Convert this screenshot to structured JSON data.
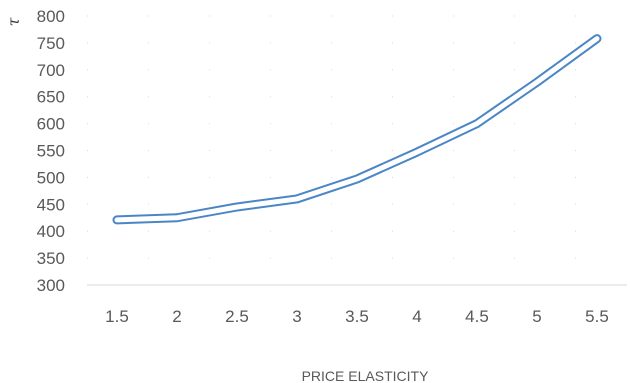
{
  "chart_data": {
    "type": "line",
    "title": "",
    "xlabel": "PRICE ELASTICITY",
    "ylabel": "τ",
    "x": [
      1.5,
      2,
      2.5,
      3,
      3.5,
      4,
      4.5,
      5,
      5.5
    ],
    "x_tick_labels": [
      "1.5",
      "2",
      "2.5",
      "3",
      "3.5",
      "4",
      "4.5",
      "5",
      "5.5"
    ],
    "y_ticks": [
      300,
      350,
      400,
      450,
      500,
      550,
      600,
      650,
      700,
      750,
      800
    ],
    "ylim": [
      300,
      800
    ],
    "grid": "dotted",
    "legend": "none",
    "series": [
      {
        "values": [
          421,
          425,
          445,
          460,
          497,
          547,
          600,
          677,
          758
        ],
        "color": "#4A86C6"
      }
    ]
  }
}
